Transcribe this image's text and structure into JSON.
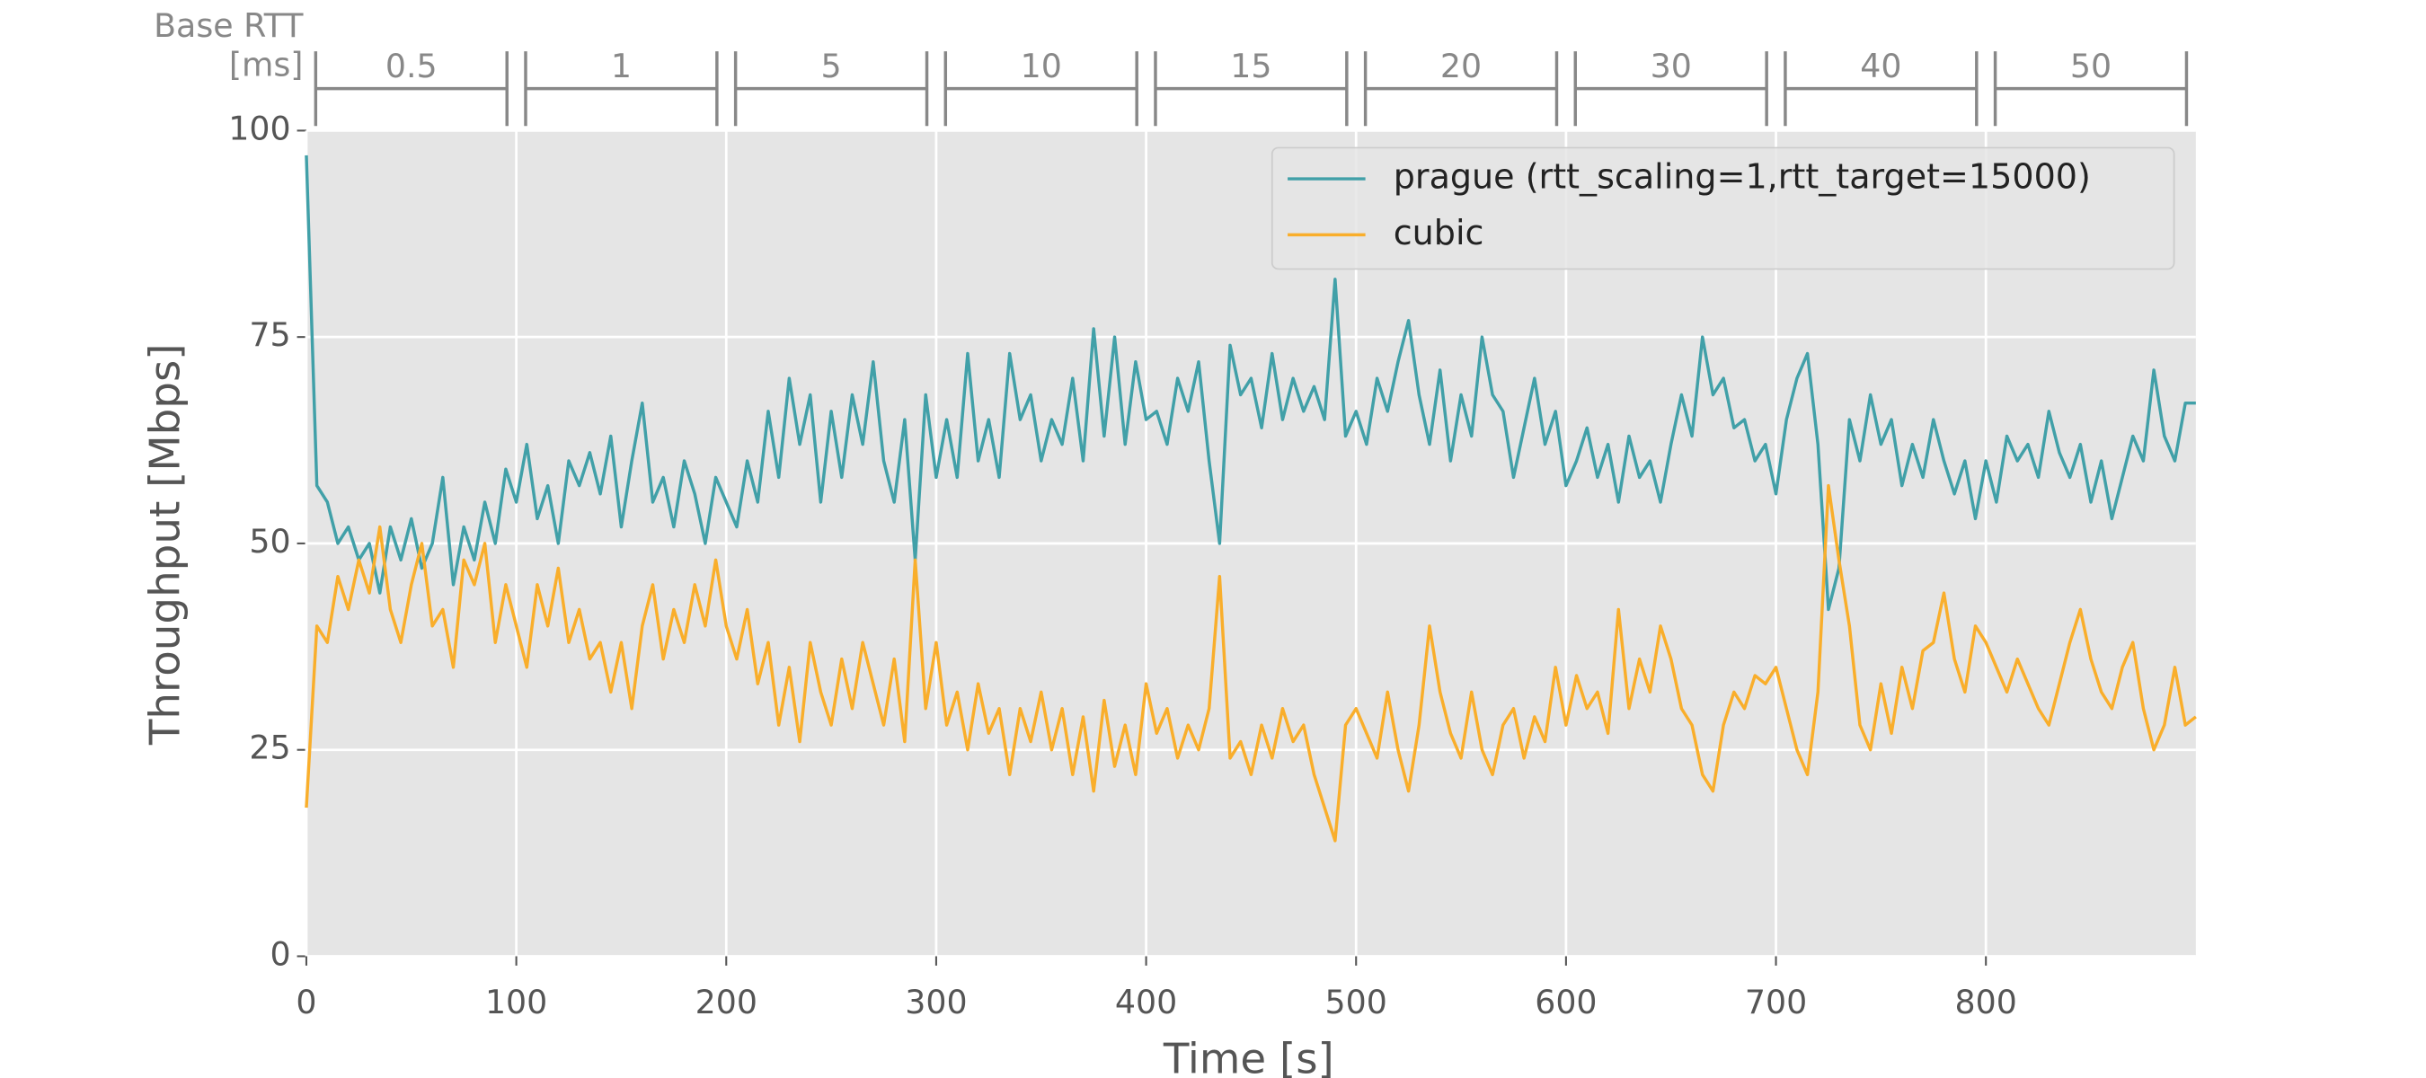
{
  "chart_data": {
    "type": "line",
    "xlabel": "Time [s]",
    "ylabel": "Throughput [Mbps]",
    "rtt_title": "Base RTT",
    "rtt_unit": "[ms]",
    "rtt_labels": [
      0.5,
      1,
      5,
      10,
      15,
      20,
      30,
      40,
      50
    ],
    "rtt_bounds": [
      0,
      100,
      200,
      300,
      400,
      500,
      600,
      700,
      800,
      900
    ],
    "xlim": [
      0,
      900
    ],
    "ylim": [
      0,
      100
    ],
    "xticks": [
      0,
      100,
      200,
      300,
      400,
      500,
      600,
      700,
      800
    ],
    "yticks": [
      0,
      25,
      50,
      75,
      100
    ],
    "grid": true,
    "legend": "upper right",
    "x": [
      0,
      5,
      10,
      15,
      20,
      25,
      30,
      35,
      40,
      45,
      50,
      55,
      60,
      65,
      70,
      75,
      80,
      85,
      90,
      95,
      100,
      105,
      110,
      115,
      120,
      125,
      130,
      135,
      140,
      145,
      150,
      155,
      160,
      165,
      170,
      175,
      180,
      185,
      190,
      195,
      200,
      205,
      210,
      215,
      220,
      225,
      230,
      235,
      240,
      245,
      250,
      255,
      260,
      265,
      270,
      275,
      280,
      285,
      290,
      295,
      300,
      305,
      310,
      315,
      320,
      325,
      330,
      335,
      340,
      345,
      350,
      355,
      360,
      365,
      370,
      375,
      380,
      385,
      390,
      395,
      400,
      405,
      410,
      415,
      420,
      425,
      430,
      435,
      440,
      445,
      450,
      455,
      460,
      465,
      470,
      475,
      480,
      485,
      490,
      495,
      500,
      505,
      510,
      515,
      520,
      525,
      530,
      535,
      540,
      545,
      550,
      555,
      560,
      565,
      570,
      575,
      580,
      585,
      590,
      595,
      600,
      605,
      610,
      615,
      620,
      625,
      630,
      635,
      640,
      645,
      650,
      655,
      660,
      665,
      670,
      675,
      680,
      685,
      690,
      695,
      700,
      705,
      710,
      715,
      720,
      725,
      730,
      735,
      740,
      745,
      750,
      755,
      760,
      765,
      770,
      775,
      780,
      785,
      790,
      795,
      800,
      805,
      810,
      815,
      820,
      825,
      830,
      835,
      840,
      845,
      850,
      855,
      860,
      865,
      870,
      875,
      880,
      885,
      890,
      895,
      900
    ],
    "series": [
      {
        "name": "prague (rtt_scaling=1,rtt_target=15000)",
        "color": "#41a0a8",
        "values": [
          97,
          57,
          55,
          50,
          52,
          48,
          50,
          44,
          52,
          48,
          53,
          47,
          50,
          58,
          45,
          52,
          48,
          55,
          50,
          59,
          55,
          62,
          53,
          57,
          50,
          60,
          57,
          61,
          56,
          63,
          52,
          60,
          67,
          55,
          58,
          52,
          60,
          56,
          50,
          58,
          55,
          52,
          60,
          55,
          66,
          58,
          70,
          62,
          68,
          55,
          66,
          58,
          68,
          62,
          72,
          60,
          55,
          65,
          48,
          68,
          58,
          65,
          58,
          73,
          60,
          65,
          58,
          73,
          65,
          68,
          60,
          65,
          62,
          70,
          60,
          76,
          63,
          75,
          62,
          72,
          65,
          66,
          62,
          70,
          66,
          72,
          60,
          50,
          74,
          68,
          70,
          64,
          73,
          65,
          70,
          66,
          69,
          65,
          82,
          63,
          66,
          62,
          70,
          66,
          72,
          77,
          68,
          62,
          71,
          60,
          68,
          63,
          75,
          68,
          66,
          58,
          64,
          70,
          62,
          66,
          57,
          60,
          64,
          58,
          62,
          55,
          63,
          58,
          60,
          55,
          62,
          68,
          63,
          75,
          68,
          70,
          64,
          65,
          60,
          62,
          56,
          65,
          70,
          73,
          62,
          42,
          47,
          65,
          60,
          68,
          62,
          65,
          57,
          62,
          58,
          65,
          60,
          56,
          60,
          53,
          60,
          55,
          63,
          60,
          62,
          58,
          66,
          61,
          58,
          62,
          55,
          60,
          53,
          58,
          63,
          60,
          71,
          63,
          60,
          67,
          67
        ]
      },
      {
        "name": "cubic",
        "color": "#f9ae2b",
        "values": [
          18,
          40,
          38,
          46,
          42,
          48,
          44,
          52,
          42,
          38,
          45,
          50,
          40,
          42,
          35,
          48,
          45,
          50,
          38,
          45,
          40,
          35,
          45,
          40,
          47,
          38,
          42,
          36,
          38,
          32,
          38,
          30,
          40,
          45,
          36,
          42,
          38,
          45,
          40,
          48,
          40,
          36,
          42,
          33,
          38,
          28,
          35,
          26,
          38,
          32,
          28,
          36,
          30,
          38,
          33,
          28,
          36,
          26,
          48,
          30,
          38,
          28,
          32,
          25,
          33,
          27,
          30,
          22,
          30,
          26,
          32,
          25,
          30,
          22,
          29,
          20,
          31,
          23,
          28,
          22,
          33,
          27,
          30,
          24,
          28,
          25,
          30,
          46,
          24,
          26,
          22,
          28,
          24,
          30,
          26,
          28,
          22,
          18,
          14,
          28,
          30,
          27,
          24,
          32,
          25,
          20,
          28,
          40,
          32,
          27,
          24,
          32,
          25,
          22,
          28,
          30,
          24,
          29,
          26,
          35,
          28,
          34,
          30,
          32,
          27,
          42,
          30,
          36,
          32,
          40,
          36,
          30,
          28,
          22,
          20,
          28,
          32,
          30,
          34,
          33,
          35,
          30,
          25,
          22,
          32,
          57,
          48,
          40,
          28,
          25,
          33,
          27,
          35,
          30,
          37,
          38,
          44,
          36,
          32,
          40,
          38,
          35,
          32,
          36,
          33,
          30,
          28,
          33,
          38,
          42,
          36,
          32,
          30,
          35,
          38,
          30,
          25,
          28,
          35,
          28,
          29
        ]
      }
    ]
  }
}
